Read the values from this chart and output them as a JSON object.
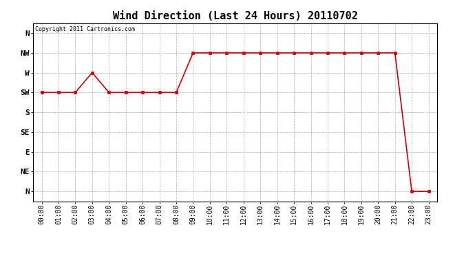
{
  "title": "Wind Direction (Last 24 Hours) 20110702",
  "copyright": "Copyright 2011 Cartronics.com",
  "x_labels": [
    "00:00",
    "01:00",
    "02:00",
    "03:00",
    "04:00",
    "05:00",
    "06:00",
    "07:00",
    "08:00",
    "09:00",
    "10:00",
    "11:00",
    "12:00",
    "13:00",
    "14:00",
    "15:00",
    "16:00",
    "17:00",
    "18:00",
    "19:00",
    "20:00",
    "21:00",
    "22:00",
    "23:00"
  ],
  "y_labels": [
    "N",
    "NE",
    "E",
    "SE",
    "S",
    "SW",
    "W",
    "NW",
    "N"
  ],
  "y_values": [
    0,
    1,
    2,
    3,
    4,
    5,
    6,
    7,
    8
  ],
  "data_x": [
    0,
    1,
    2,
    3,
    4,
    5,
    6,
    7,
    8,
    9,
    10,
    11,
    12,
    13,
    14,
    15,
    16,
    17,
    18,
    19,
    20,
    21,
    22,
    23
  ],
  "data_y": [
    5,
    5,
    5,
    6,
    5,
    5,
    5,
    5,
    5,
    7,
    7,
    7,
    7,
    7,
    7,
    7,
    7,
    7,
    7,
    7,
    7,
    7,
    0,
    0
  ],
  "line_color": "#cc0000",
  "marker": "s",
  "marker_size": 2.5,
  "background_color": "#ffffff",
  "grid_color": "#bbbbbb",
  "title_fontsize": 11,
  "axis_fontsize": 7,
  "ylabel_fontsize": 8,
  "copyright_fontsize": 6
}
